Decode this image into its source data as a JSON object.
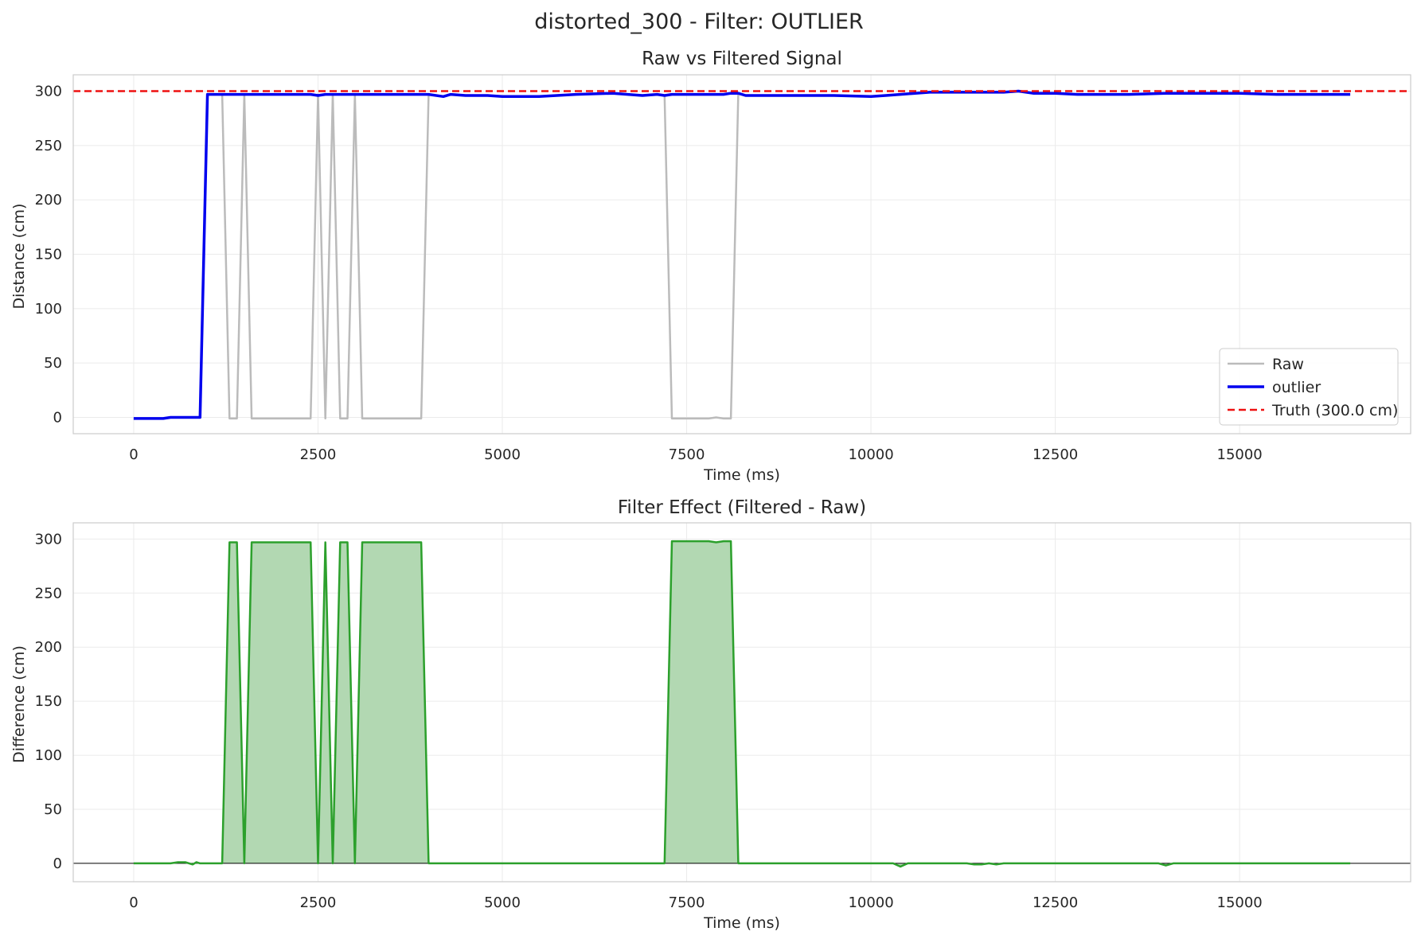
{
  "figure": {
    "title": "distorted_300 - Filter: OUTLIER"
  },
  "colors": {
    "raw": "#bbbbbb",
    "filtered": "#0000ee",
    "truth": "#ee1111",
    "diff_line": "#2ca02c",
    "diff_fill": "#b2d8b2",
    "grid": "#ebebeb",
    "frame": "#cccccc"
  },
  "chart_data": [
    {
      "type": "line",
      "title": "Raw vs Filtered Signal",
      "xlabel": "Time (ms)",
      "ylabel": "Distance (cm)",
      "xlim": [
        -820,
        17320
      ],
      "ylim": [
        -15,
        315
      ],
      "xticks": [
        0,
        2500,
        5000,
        7500,
        10000,
        12500,
        15000
      ],
      "yticks": [
        0,
        50,
        100,
        150,
        200,
        250,
        300
      ],
      "grid": true,
      "legend_position": "lower-right",
      "truth_value": 300.0,
      "series": [
        {
          "name": "Raw",
          "x": [
            0,
            400,
            500,
            900,
            1000,
            1200,
            1300,
            1400,
            1500,
            1600,
            1700,
            2400,
            2500,
            2600,
            2700,
            2800,
            2900,
            3000,
            3100,
            3200,
            3900,
            4000,
            4200,
            4300,
            4500,
            4800,
            5000,
            5500,
            6000,
            6500,
            6700,
            6900,
            7100,
            7200,
            7300,
            7400,
            7800,
            7900,
            8000,
            8100,
            8200,
            8300,
            8400,
            9000,
            9500,
            10000,
            10200,
            10400,
            10600,
            10800,
            11000,
            11600,
            11800,
            12000,
            12200,
            12500,
            12800,
            13000,
            13500,
            14000,
            14500,
            15000,
            15500,
            16000,
            16500
          ],
          "y": [
            -1,
            -1,
            0,
            0,
            297,
            297,
            -1,
            -1,
            297,
            -1,
            -1,
            -1,
            297,
            -1,
            297,
            -1,
            -1,
            297,
            -1,
            -1,
            -1,
            297,
            295,
            297,
            296,
            296,
            295,
            295,
            297,
            298,
            297,
            296,
            297,
            296,
            -1,
            -1,
            -1,
            0,
            -1,
            -1,
            298,
            296,
            296,
            296,
            296,
            295,
            296,
            297,
            298,
            299,
            299,
            299,
            299,
            300,
            298,
            298,
            297,
            297,
            297,
            298,
            298,
            298,
            297,
            297,
            297
          ]
        },
        {
          "name": "outlier",
          "x": [
            0,
            400,
            500,
            900,
            1000,
            1200,
            1500,
            2400,
            2500,
            2600,
            2700,
            2900,
            3000,
            3500,
            4000,
            4200,
            4300,
            4500,
            4800,
            5000,
            5500,
            6000,
            6500,
            6700,
            6900,
            7100,
            7200,
            7300,
            7400,
            7800,
            8000,
            8100,
            8200,
            8300,
            8400,
            9000,
            9500,
            10000,
            10200,
            10400,
            10600,
            10800,
            11000,
            11600,
            11800,
            12000,
            12200,
            12500,
            12800,
            13000,
            13500,
            14000,
            14500,
            15000,
            15500,
            16000,
            16500
          ],
          "y": [
            -1,
            -1,
            0,
            0,
            297,
            297,
            297,
            297,
            296,
            297,
            297,
            297,
            297,
            297,
            297,
            295,
            297,
            296,
            296,
            295,
            295,
            297,
            298,
            297,
            296,
            297,
            296,
            297,
            297,
            297,
            297,
            298,
            298,
            296,
            296,
            296,
            296,
            295,
            296,
            297,
            298,
            299,
            299,
            299,
            299,
            300,
            298,
            298,
            297,
            297,
            297,
            298,
            298,
            298,
            297,
            297,
            297
          ]
        },
        {
          "name": "Truth (300.0 cm)",
          "x": [
            -820,
            17320
          ],
          "y": [
            300,
            300
          ]
        }
      ]
    },
    {
      "type": "area",
      "title": "Filter Effect (Filtered - Raw)",
      "xlabel": "Time (ms)",
      "ylabel": "Difference (cm)",
      "xlim": [
        -820,
        17320
      ],
      "ylim": [
        -17,
        315
      ],
      "xticks": [
        0,
        2500,
        5000,
        7500,
        10000,
        12500,
        15000
      ],
      "yticks": [
        0,
        50,
        100,
        150,
        200,
        250,
        300
      ],
      "grid": true,
      "zero_line": true,
      "series": [
        {
          "name": "",
          "x": [
            0,
            500,
            600,
            700,
            800,
            850,
            900,
            1000,
            1200,
            1300,
            1400,
            1500,
            1600,
            2400,
            2500,
            2600,
            2700,
            2800,
            2900,
            3000,
            3100,
            3900,
            4000,
            7200,
            7300,
            7800,
            7900,
            8000,
            8100,
            8200,
            10300,
            10400,
            10500,
            11300,
            11400,
            11500,
            11600,
            11700,
            11800,
            13900,
            14000,
            14100,
            16500
          ],
          "y": [
            0,
            0,
            1,
            1,
            -1,
            1,
            0,
            0,
            0,
            297,
            297,
            0,
            297,
            297,
            0,
            297,
            0,
            297,
            297,
            0,
            297,
            297,
            0,
            0,
            298,
            298,
            297,
            298,
            298,
            0,
            0,
            -3,
            0,
            0,
            -1,
            -1,
            0,
            -1,
            0,
            0,
            -2,
            0,
            0
          ]
        }
      ]
    }
  ]
}
